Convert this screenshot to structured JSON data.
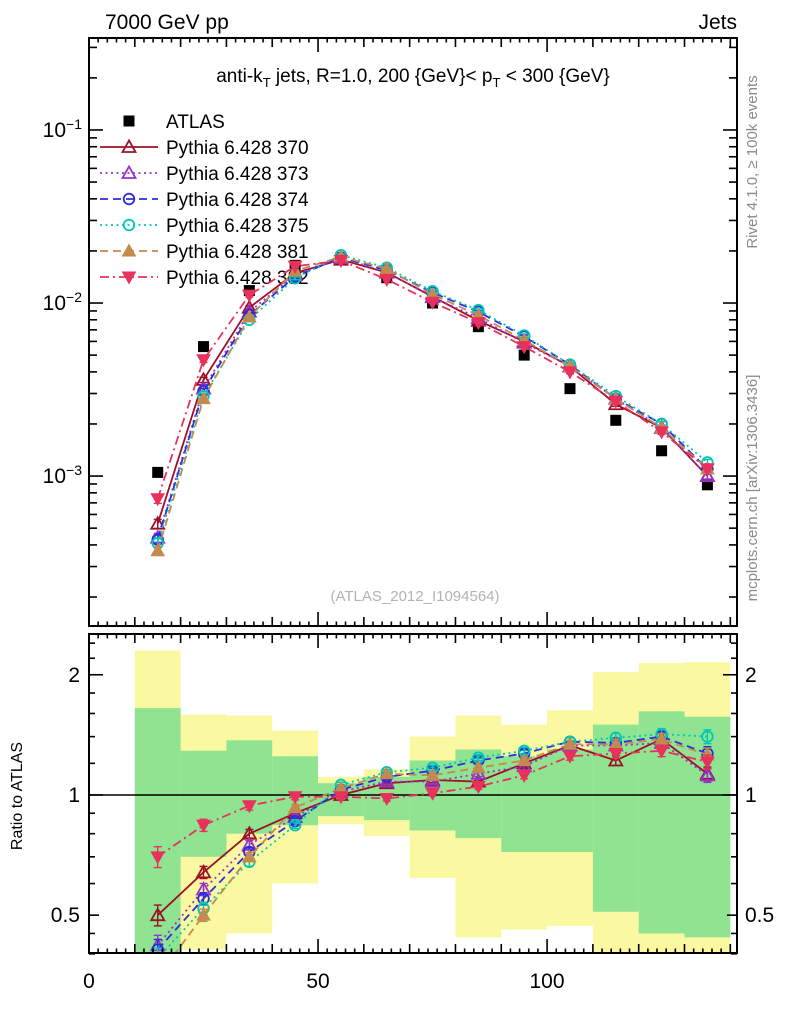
{
  "header": {
    "left": "7000 GeV pp",
    "right": "Jets"
  },
  "panel_title": {
    "pre": "anti-k",
    "sub1": "T",
    "mid": " jets, R=1.0, 200 {GeV}< p",
    "sub2": "T",
    "post": " < 300 {GeV}"
  },
  "watermark": "(ATLAS_2012_I1094564)",
  "side_notes": {
    "top": "Rivet 4.1.0, ≥ 100k events",
    "bottom": "mcplots.cern.ch [arXiv:1306.3436]"
  },
  "axes": {
    "ratio_ylabel": "Ratio to ATLAS",
    "main_y_ticks": [
      {
        "base": "10",
        "exp": "−1"
      },
      {
        "base": "10",
        "exp": "−2"
      },
      {
        "base": "10",
        "exp": "−3"
      }
    ],
    "ratio_y_ticks_left": [
      "2",
      "1",
      "0.5"
    ],
    "ratio_y_ticks_right": [
      "2",
      "1",
      "0.5"
    ],
    "x_tick_labels": [
      "0",
      "50",
      "100"
    ]
  },
  "legend": {
    "items": [
      {
        "label": "ATLAS"
      },
      {
        "label": "Pythia 6.428 370"
      },
      {
        "label": "Pythia 6.428 373"
      },
      {
        "label": "Pythia 6.428 374"
      },
      {
        "label": "Pythia 6.428 375"
      },
      {
        "label": "Pythia 6.428 381"
      },
      {
        "label": "Pythia 6.428 382"
      }
    ]
  },
  "chart_data": {
    "type": "line",
    "title": "anti-kT jets, R=1.0, 200 {GeV}< pT < 300 {GeV}",
    "x_axis": {
      "lim": [
        0,
        141.46
      ],
      "major_ticks": [
        0,
        50,
        100
      ],
      "minor_step": 10,
      "fine_step": 2
    },
    "main_y_axis": {
      "scale": "log",
      "lim": [
        0.000136,
        0.34
      ],
      "decades": [
        0.1,
        0.01,
        0.001
      ]
    },
    "ratio_y_axis": {
      "scale": "log",
      "lim": [
        0.402,
        2.53
      ],
      "labeled": [
        2,
        1,
        0.5
      ],
      "minor": [
        2.4,
        2.2,
        2.0,
        1.8,
        1.6,
        1.4,
        1.2,
        1.0,
        0.9,
        0.8,
        0.7,
        0.6,
        0.5,
        0.45,
        0.4
      ]
    },
    "x": [
      15,
      25,
      35,
      45,
      55,
      65,
      75,
      85,
      95,
      105,
      115,
      125,
      135
    ],
    "bin_edges": [
      10,
      20,
      30,
      40,
      50,
      60,
      70,
      80,
      90,
      100,
      110,
      120,
      130,
      140
    ],
    "rel_err": [
      0.06,
      0.035,
      0.025,
      0.018,
      0.015,
      0.015,
      0.015,
      0.016,
      0.02,
      0.022,
      0.028,
      0.033,
      0.04
    ],
    "atlas": {
      "name": "ATLAS",
      "color": "#000000",
      "marker": "square",
      "values": [
        0.00105,
        0.0056,
        0.0118,
        0.0165,
        0.0178,
        0.014,
        0.01,
        0.0073,
        0.005,
        0.0032,
        0.0021,
        0.0014,
        0.00089
      ]
    },
    "series": [
      {
        "name": "Pythia 6.428 370",
        "color": "#9c1127",
        "dash": "solid",
        "marker": "triangle-open",
        "values": [
          0.00053,
          0.0036,
          0.0094,
          0.0149,
          0.0178,
          0.015,
          0.0109,
          0.0079,
          0.006,
          0.0043,
          0.0026,
          0.0019,
          0.001
        ],
        "ratio_to_atlas": [
          0.5,
          0.64,
          0.8,
          0.9,
          1.0,
          1.07,
          1.09,
          1.08,
          1.2,
          1.33,
          1.22,
          1.38,
          1.13
        ]
      },
      {
        "name": "Pythia 6.428 373",
        "color": "#9932cc",
        "dash": "dotted",
        "marker": "triangle-open",
        "values": [
          0.00044,
          0.0032,
          0.0089,
          0.0145,
          0.0182,
          0.0151,
          0.0108,
          0.0082,
          0.0059,
          0.0043,
          0.0028,
          0.0019,
          0.001
        ],
        "ratio_to_atlas": [
          0.42,
          0.58,
          0.75,
          0.88,
          1.02,
          1.08,
          1.08,
          1.13,
          1.18,
          1.33,
          1.33,
          1.35,
          1.12
        ]
      },
      {
        "name": "Pythia 6.428 374",
        "color": "#2c2cdc",
        "dash": "dashed",
        "marker": "circle-open",
        "values": [
          0.00043,
          0.0031,
          0.0085,
          0.0142,
          0.0183,
          0.0155,
          0.0115,
          0.0089,
          0.0064,
          0.0044,
          0.0028,
          0.002,
          0.0011
        ],
        "ratio_to_atlas": [
          0.41,
          0.55,
          0.72,
          0.86,
          1.03,
          1.11,
          1.15,
          1.22,
          1.27,
          1.36,
          1.35,
          1.4,
          1.27
        ]
      },
      {
        "name": "Pythia 6.428 375",
        "color": "#00c8b4",
        "dash": "dotted",
        "marker": "circle-open",
        "values": [
          0.00041,
          0.0029,
          0.008,
          0.0139,
          0.0189,
          0.016,
          0.0117,
          0.0091,
          0.0065,
          0.0044,
          0.0029,
          0.002,
          0.0012
        ],
        "ratio_to_atlas": [
          0.39,
          0.52,
          0.68,
          0.84,
          1.06,
          1.14,
          1.17,
          1.24,
          1.29,
          1.36,
          1.39,
          1.42,
          1.4
        ]
      },
      {
        "name": "Pythia 6.428 381",
        "color": "#c28a4e",
        "dash": "dashed",
        "marker": "triangle-filled",
        "values": [
          0.00037,
          0.0028,
          0.0083,
          0.0153,
          0.0185,
          0.0158,
          0.0112,
          0.0085,
          0.0061,
          0.0043,
          0.0028,
          0.0019,
          0.0011
        ],
        "ratio_to_atlas": [
          0.35,
          0.5,
          0.7,
          0.93,
          1.04,
          1.13,
          1.12,
          1.17,
          1.22,
          1.34,
          1.34,
          1.38,
          1.26
        ]
      },
      {
        "name": "Pythia 6.428 382",
        "color": "#e8315b",
        "dash": "dashdot",
        "marker": "triangle-down-filled",
        "values": [
          0.00074,
          0.0047,
          0.0111,
          0.0163,
          0.0176,
          0.0137,
          0.0101,
          0.0077,
          0.0056,
          0.004,
          0.0027,
          0.0018,
          0.0011
        ],
        "ratio_to_atlas": [
          0.7,
          0.84,
          0.94,
          0.99,
          0.99,
          0.98,
          1.01,
          1.05,
          1.12,
          1.25,
          1.27,
          1.29,
          1.21
        ]
      }
    ],
    "bands": {
      "yellow": {
        "color": "#faf8a0",
        "hi": [
          2.3,
          1.59,
          1.58,
          1.45,
          1.11,
          1.16,
          1.4,
          1.58,
          1.5,
          1.63,
          2.03,
          2.14,
          2.15
        ],
        "lo": [
          0.3,
          0.41,
          0.45,
          0.6,
          0.845,
          0.79,
          0.62,
          0.44,
          0.46,
          0.47,
          0.3,
          0.3,
          0.3
        ]
      },
      "green": {
        "color": "#8fe391",
        "hi": [
          1.65,
          1.29,
          1.37,
          1.25,
          1.07,
          1.11,
          1.22,
          1.3,
          1.25,
          1.3,
          1.5,
          1.62,
          1.57
        ],
        "lo": [
          0.3,
          0.7,
          0.8,
          0.84,
          0.885,
          0.865,
          0.815,
          0.78,
          0.72,
          0.72,
          0.51,
          0.45,
          0.44
        ]
      }
    }
  }
}
